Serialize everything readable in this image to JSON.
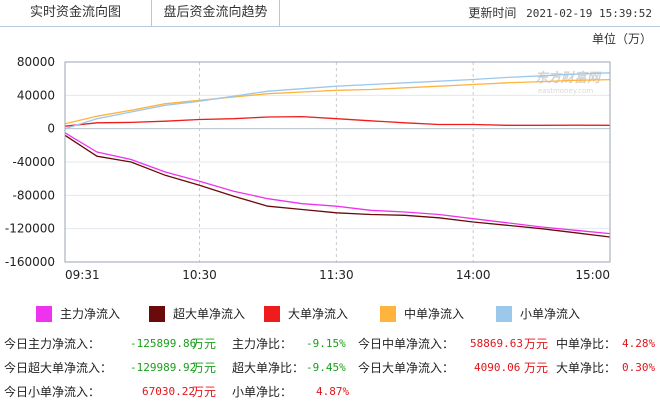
{
  "tabs": [
    "实时资金流向图",
    "盘后资金流向趋势"
  ],
  "update": {
    "label": "更新时间",
    "time": "2021-02-19 15:39:52"
  },
  "unit": "单位（万）",
  "watermark": {
    "name": "东方财富网",
    "domain": "eastmoney.com"
  },
  "chart_data": {
    "type": "line",
    "title": "",
    "xlabel": "",
    "ylabel": "",
    "ylim": [
      -160000,
      80000
    ],
    "yticks": [
      80000,
      40000,
      0,
      -40000,
      -80000,
      -120000,
      -160000
    ],
    "xticks": [
      "09:31",
      "10:30",
      "11:30",
      "14:00",
      "15:00"
    ],
    "grid": true,
    "x": [
      "09:31",
      "09:45",
      "10:00",
      "10:15",
      "10:30",
      "10:45",
      "11:00",
      "11:15",
      "11:30",
      "13:15",
      "13:30",
      "13:45",
      "14:00",
      "14:15",
      "14:30",
      "14:45",
      "15:00"
    ],
    "series": [
      {
        "name": "主力净流入",
        "color": "#ee33ee",
        "values": [
          -5000,
          -28000,
          -37000,
          -52000,
          -63000,
          -75000,
          -84000,
          -90000,
          -93000,
          -98000,
          -100000,
          -103000,
          -108000,
          -113000,
          -118000,
          -122000,
          -125900
        ]
      },
      {
        "name": "超大单净流入",
        "color": "#6b0a0a",
        "values": [
          -8000,
          -33000,
          -40000,
          -56000,
          -68000,
          -81000,
          -93000,
          -97000,
          -101000,
          -103000,
          -104000,
          -107000,
          -112000,
          -116000,
          -120000,
          -125000,
          -130000
        ]
      },
      {
        "name": "大单净流入",
        "color": "#ee1c1c",
        "values": [
          3000,
          7000,
          7500,
          9000,
          11000,
          12000,
          14000,
          14500,
          12000,
          9500,
          7000,
          5000,
          5000,
          4000,
          4000,
          4200,
          4100
        ]
      },
      {
        "name": "中单净流入",
        "color": "#ffb43e",
        "values": [
          6000,
          15000,
          22000,
          30000,
          34000,
          38000,
          42000,
          44000,
          46000,
          47000,
          49000,
          51000,
          53000,
          55000,
          56500,
          58000,
          58900
        ]
      },
      {
        "name": "小单净流入",
        "color": "#9cc8ec",
        "values": [
          0,
          12000,
          20000,
          28000,
          33000,
          39000,
          45000,
          48000,
          51000,
          53000,
          55000,
          57000,
          59000,
          61500,
          63500,
          65500,
          67000
        ]
      }
    ]
  },
  "legend": [
    {
      "label": "主力净流入",
      "color": "#ee33ee"
    },
    {
      "label": "超大单净流入",
      "color": "#6b0a0a"
    },
    {
      "label": "大单净流入",
      "color": "#ee1c1c"
    },
    {
      "label": "中单净流入",
      "color": "#ffb43e"
    },
    {
      "label": "小单净流入",
      "color": "#9cc8ec"
    }
  ],
  "stats": {
    "row1": {
      "a_label": "今日主力净流入：",
      "a_val": "-125899.86",
      "a_unit": "万元",
      "b_label": "主力净比：",
      "b_val": "-9.15%",
      "c_label": "今日中单净流入：",
      "c_val": "58869.63",
      "c_unit": "万元",
      "d_label": "中单净比：",
      "d_val": "4.28%"
    },
    "row2": {
      "a_label": "今日超大单净流入：",
      "a_val": "-129989.92",
      "a_unit": "万元",
      "b_label": "超大单净比：",
      "b_val": "-9.45%",
      "c_label": "今日大单净流入：",
      "c_val": "4090.06",
      "c_unit": "万元",
      "d_label": "大单净比：",
      "d_val": "0.30%"
    },
    "row3": {
      "a_label": "今日小单净流入：",
      "a_val": "67030.22",
      "a_unit": "万元",
      "b_label": "小单净比：",
      "b_val": "4.87%"
    }
  }
}
